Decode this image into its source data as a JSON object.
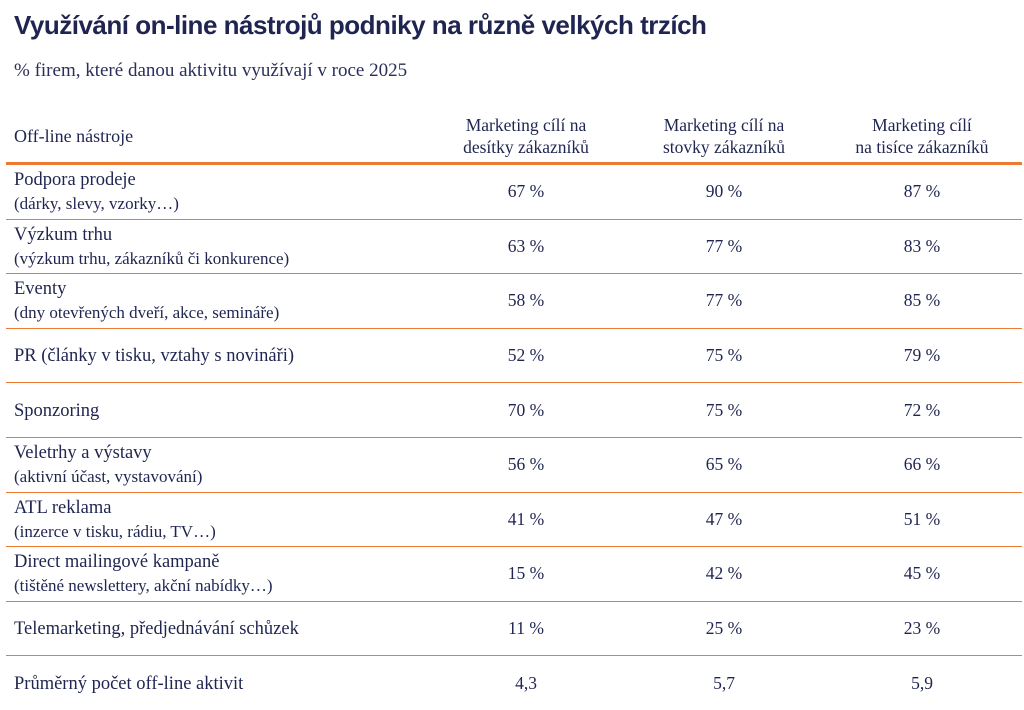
{
  "title": "Využívání on-line nástrojů podniky na různě velkých trzích",
  "subtitle": "% firem, které danou aktivitu využívají v roce 2025",
  "table": {
    "header": {
      "label": "Off-line nástroje",
      "col1": [
        "Marketing cílí na",
        "desítky zákazníků"
      ],
      "col2": [
        "Marketing cílí na",
        "stovky zákazníků"
      ],
      "col3": [
        "Marketing cílí",
        "na tisíce zákazníků"
      ]
    },
    "rows": [
      {
        "label": "Podpora prodeje",
        "sub": "(dárky, slevy, vzorky…)",
        "values": [
          "67 %",
          "90 %",
          "87 %"
        ]
      },
      {
        "label": "Výzkum trhu",
        "sub": "(výzkum trhu, zákazníků či konkurence)",
        "values": [
          "63 %",
          "77 %",
          "83 %"
        ]
      },
      {
        "label": "Eventy",
        "sub": "(dny otevřených dveří, akce, semináře)",
        "values": [
          "58 %",
          "77 %",
          "85 %"
        ]
      },
      {
        "label": "PR (články v tisku, vztahy s novináři)",
        "sub": "",
        "values": [
          "52 %",
          "75 %",
          "79 %"
        ]
      },
      {
        "label": "Sponzoring",
        "sub": "",
        "values": [
          "70 %",
          "75 %",
          "72 %"
        ]
      },
      {
        "label": "Veletrhy a výstavy",
        "sub": "(aktivní účast, vystavování)",
        "values": [
          "56 %",
          "65 %",
          "66 %"
        ]
      },
      {
        "label": "ATL reklama",
        "sub": "(inzerce v tisku, rádiu, TV…)",
        "values": [
          "41 %",
          "47 %",
          "51 %"
        ]
      },
      {
        "label": "Direct mailingové kampaně",
        "sub": "(tištěné newslettery, akční nabídky…)",
        "values": [
          "15 %",
          "42 %",
          "45 %"
        ]
      },
      {
        "label": "Telemarketing, předjednávání schůzek",
        "sub": "",
        "values": [
          "11 %",
          "25 %",
          "23 %"
        ]
      }
    ],
    "average": {
      "label": "Průměrný počet off-line aktivit",
      "values": [
        "4,3",
        "5,7",
        "5,9"
      ]
    }
  },
  "colors": {
    "accent": "#ec7a32",
    "text": "#1f2550"
  }
}
